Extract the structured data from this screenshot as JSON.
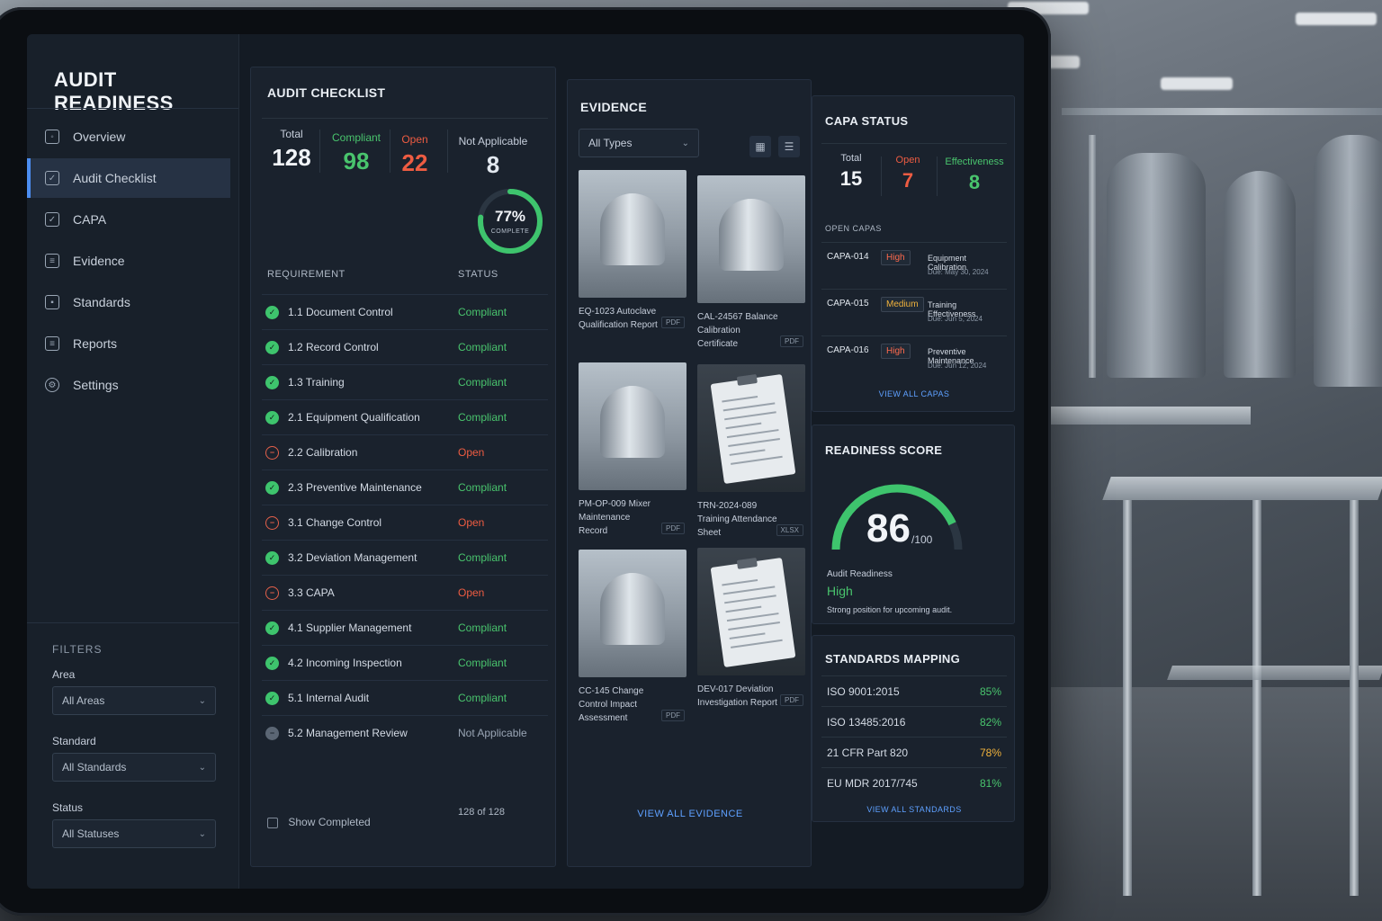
{
  "app": {
    "title": "AUDIT READINESS"
  },
  "sidebar": {
    "items": [
      {
        "label": "Overview",
        "icon": "overview-icon"
      },
      {
        "label": "Audit Checklist",
        "icon": "checklist-icon",
        "active": true
      },
      {
        "label": "CAPA",
        "icon": "capa-icon"
      },
      {
        "label": "Evidence",
        "icon": "evidence-icon"
      },
      {
        "label": "Standards",
        "icon": "standards-icon"
      },
      {
        "label": "Reports",
        "icon": "reports-icon"
      },
      {
        "label": "Settings",
        "icon": "gear-icon"
      }
    ],
    "filters": {
      "title": "FILTERS",
      "area": {
        "label": "Area",
        "value": "All Areas"
      },
      "standard": {
        "label": "Standard",
        "value": "All Standards"
      },
      "status": {
        "label": "Status",
        "value": "All Statuses"
      }
    }
  },
  "checklist": {
    "title": "AUDIT CHECKLIST",
    "stats": {
      "total_label": "Total",
      "total": "128",
      "compliant_label": "Compliant",
      "compliant": "98",
      "open_label": "Open",
      "open": "22",
      "na_label": "Not Applicable",
      "na": "8"
    },
    "progress": {
      "percent": 77,
      "percent_label": "77%",
      "label": "COMPLETE"
    },
    "columns": {
      "requirement": "REQUIREMENT",
      "status": "STATUS"
    },
    "rows": [
      {
        "name": "1.1 Document Control",
        "status": "Compliant",
        "state": "ok"
      },
      {
        "name": "1.2 Record Control",
        "status": "Compliant",
        "state": "ok"
      },
      {
        "name": "1.3 Training",
        "status": "Compliant",
        "state": "ok"
      },
      {
        "name": "2.1 Equipment Qualification",
        "status": "Compliant",
        "state": "ok"
      },
      {
        "name": "2.2 Calibration",
        "status": "Open",
        "state": "open"
      },
      {
        "name": "2.3 Preventive Maintenance",
        "status": "Compliant",
        "state": "ok"
      },
      {
        "name": "3.1 Change Control",
        "status": "Open",
        "state": "open"
      },
      {
        "name": "3.2 Deviation Management",
        "status": "Compliant",
        "state": "ok"
      },
      {
        "name": "3.3 CAPA",
        "status": "Open",
        "state": "open"
      },
      {
        "name": "4.1 Supplier Management",
        "status": "Compliant",
        "state": "ok"
      },
      {
        "name": "4.2 Incoming Inspection",
        "status": "Compliant",
        "state": "ok"
      },
      {
        "name": "5.1 Internal Audit",
        "status": "Compliant",
        "state": "ok"
      },
      {
        "name": "5.2 Management Review",
        "status": "Not Applicable",
        "state": "na"
      }
    ],
    "show_completed_label": "Show Completed",
    "count_label": "128 of 128"
  },
  "evidence": {
    "title": "EVIDENCE",
    "filter_value": "All Types",
    "items": [
      {
        "caption": "EQ-1023 Autoclave Qualification Report",
        "type": "PDF",
        "kind": "equip"
      },
      {
        "caption": "CAL-24567 Balance Calibration Certificate",
        "type": "PDF",
        "kind": "equip"
      },
      {
        "caption": "PM-OP-009 Mixer Maintenance Record",
        "type": "PDF",
        "kind": "equip"
      },
      {
        "caption": "TRN-2024-089 Training Attendance Sheet",
        "type": "XLSX",
        "kind": "doc"
      },
      {
        "caption": "CC-145 Change Control Impact Assessment",
        "type": "PDF",
        "kind": "equip"
      },
      {
        "caption": "DEV-017 Deviation Investigation Report",
        "type": "PDF",
        "kind": "doc"
      }
    ],
    "view_all": "VIEW ALL EVIDENCE"
  },
  "capa": {
    "title": "CAPA STATUS",
    "total_label": "Total",
    "total": "15",
    "open_label": "Open",
    "open": "7",
    "eff_label": "Effectiveness",
    "eff": "8",
    "open_capas_label": "OPEN CAPAS",
    "items": [
      {
        "id": "CAPA-014",
        "priority": "High",
        "title": "Equipment Calibration",
        "due": "Due: May 30, 2024"
      },
      {
        "id": "CAPA-015",
        "priority": "Medium",
        "title": "Training Effectiveness",
        "due": "Due: Jun 5, 2024"
      },
      {
        "id": "CAPA-016",
        "priority": "High",
        "title": "Preventive Maintenance",
        "due": "Due: Jun 12, 2024"
      }
    ],
    "view_all": "VIEW ALL CAPAS"
  },
  "readiness": {
    "title": "READINESS SCORE",
    "score": "86",
    "score_value": 86,
    "max": "/100",
    "label": "Audit Readiness",
    "level": "High",
    "note": "Strong position for upcoming audit."
  },
  "standards": {
    "title": "STANDARDS MAPPING",
    "items": [
      {
        "name": "ISO 9001:2015",
        "pct": "85%"
      },
      {
        "name": "ISO 13485:2016",
        "pct": "82%"
      },
      {
        "name": "21 CFR Part 820",
        "pct": "78%"
      },
      {
        "name": "EU MDR 2017/745",
        "pct": "81%"
      }
    ],
    "view_all": "VIEW ALL STANDARDS"
  },
  "colors": {
    "accent": "#4c8df0",
    "green": "#49c46d",
    "red": "#ee5c42",
    "amber": "#f0b23c"
  }
}
